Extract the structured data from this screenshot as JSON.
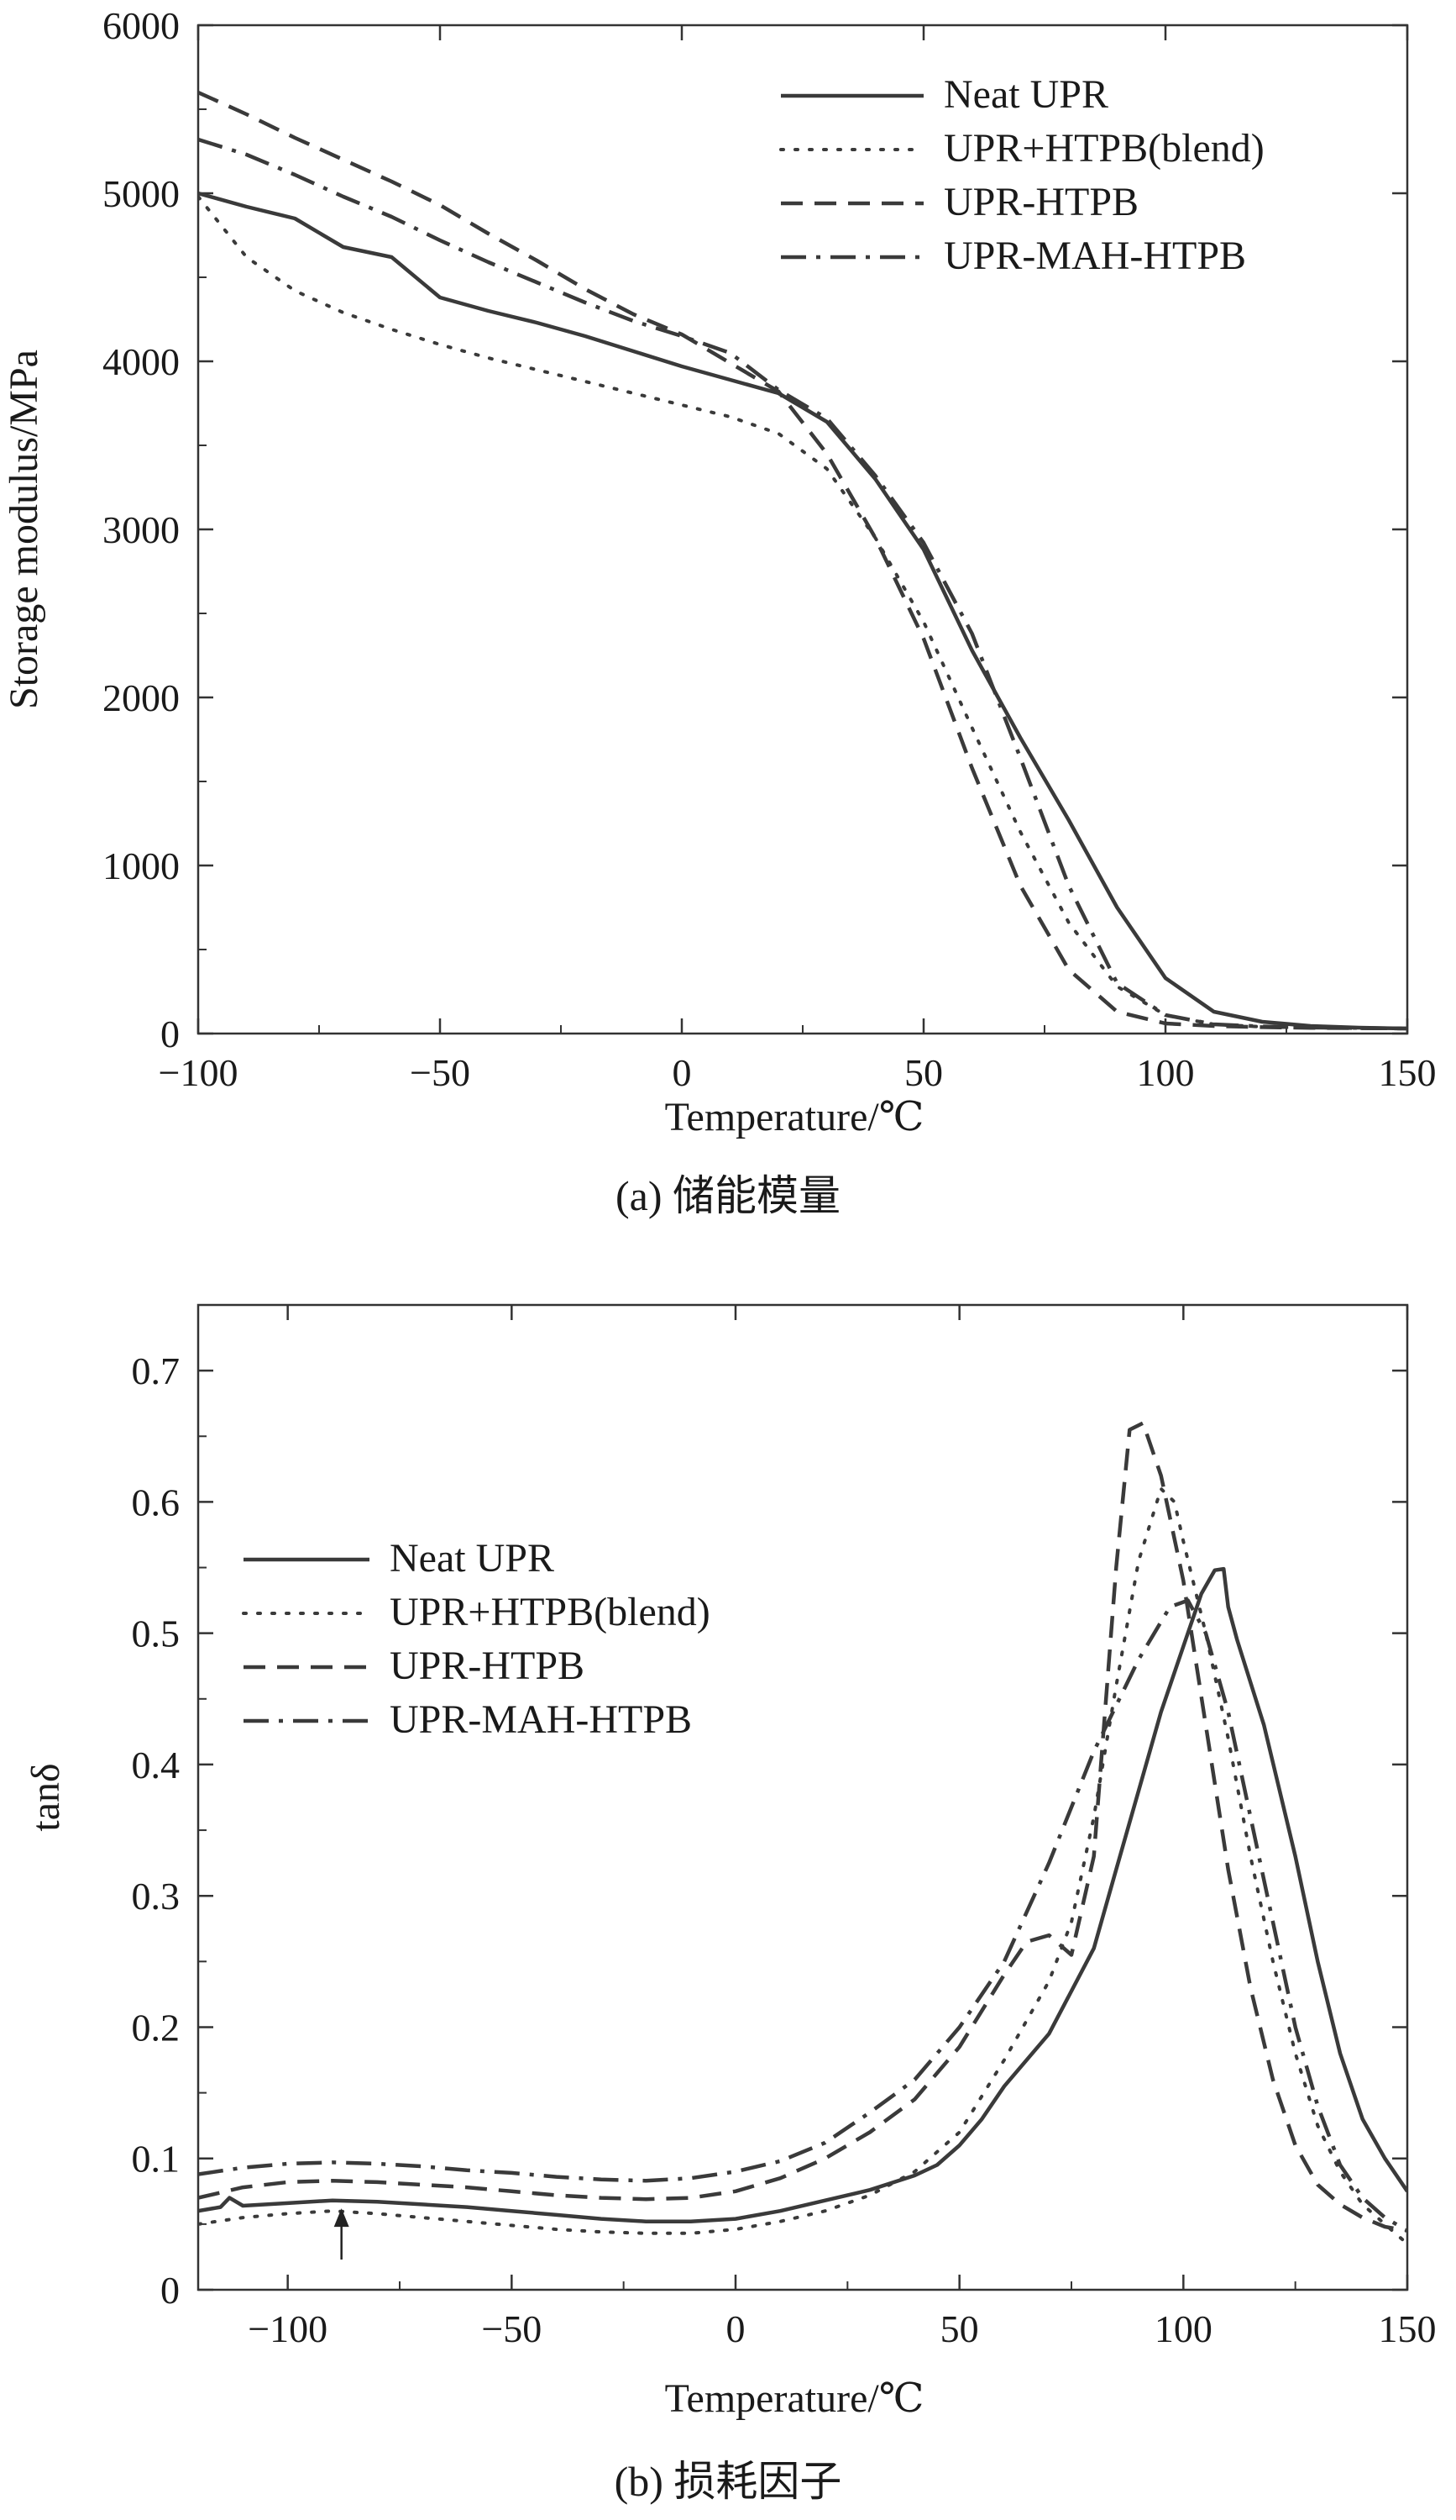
{
  "chart_data": [
    {
      "type": "line",
      "panel": "a",
      "caption": "(a) 储能模量",
      "xlabel": "Temperature/℃",
      "ylabel": "Storage modulus/MPa",
      "xlim": [
        -100,
        150
      ],
      "ylim": [
        0,
        6000
      ],
      "xticks": [
        -100,
        -50,
        0,
        50,
        100,
        150
      ],
      "yticks": [
        0,
        1000,
        2000,
        3000,
        4000,
        5000,
        6000
      ],
      "xtick_labels": [
        "−100",
        "−50",
        "0",
        "50",
        "100",
        "150"
      ],
      "ytick_labels": [
        "0",
        "1000",
        "2000",
        "3000",
        "4000",
        "5000",
        "6000"
      ],
      "legend_position": "top-right",
      "grid": false,
      "series": [
        {
          "name": "Neat UPR",
          "style": "solid",
          "points": [
            [
              -100,
              5000
            ],
            [
              -90,
              4920
            ],
            [
              -80,
              4850
            ],
            [
              -70,
              4680
            ],
            [
              -60,
              4620
            ],
            [
              -50,
              4380
            ],
            [
              -40,
              4300
            ],
            [
              -30,
              4230
            ],
            [
              -20,
              4150
            ],
            [
              -10,
              4060
            ],
            [
              0,
              3970
            ],
            [
              10,
              3890
            ],
            [
              20,
              3810
            ],
            [
              30,
              3640
            ],
            [
              40,
              3300
            ],
            [
              50,
              2880
            ],
            [
              60,
              2280
            ],
            [
              70,
              1760
            ],
            [
              80,
              1270
            ],
            [
              90,
              750
            ],
            [
              100,
              330
            ],
            [
              110,
              130
            ],
            [
              120,
              70
            ],
            [
              130,
              45
            ],
            [
              140,
              35
            ],
            [
              150,
              30
            ]
          ]
        },
        {
          "name": "UPR+HTPB(blend)",
          "style": "dotted",
          "points": [
            [
              -100,
              4980
            ],
            [
              -90,
              4620
            ],
            [
              -80,
              4420
            ],
            [
              -70,
              4290
            ],
            [
              -60,
              4190
            ],
            [
              -50,
              4100
            ],
            [
              -40,
              4020
            ],
            [
              -30,
              3950
            ],
            [
              -20,
              3880
            ],
            [
              -10,
              3810
            ],
            [
              0,
              3740
            ],
            [
              10,
              3670
            ],
            [
              20,
              3570
            ],
            [
              30,
              3360
            ],
            [
              40,
              2950
            ],
            [
              50,
              2450
            ],
            [
              60,
              1820
            ],
            [
              70,
              1200
            ],
            [
              80,
              660
            ],
            [
              90,
              280
            ],
            [
              100,
              110
            ],
            [
              110,
              55
            ],
            [
              120,
              40
            ],
            [
              130,
              35
            ],
            [
              150,
              30
            ]
          ]
        },
        {
          "name": "UPR-HTPB",
          "style": "dashed",
          "points": [
            [
              -100,
              5600
            ],
            [
              -90,
              5470
            ],
            [
              -80,
              5330
            ],
            [
              -70,
              5200
            ],
            [
              -60,
              5070
            ],
            [
              -50,
              4930
            ],
            [
              -40,
              4760
            ],
            [
              -30,
              4600
            ],
            [
              -20,
              4430
            ],
            [
              -10,
              4280
            ],
            [
              0,
              4160
            ],
            [
              10,
              3990
            ],
            [
              20,
              3820
            ],
            [
              30,
              3450
            ],
            [
              40,
              2950
            ],
            [
              50,
              2350
            ],
            [
              60,
              1580
            ],
            [
              70,
              880
            ],
            [
              80,
              380
            ],
            [
              90,
              130
            ],
            [
              100,
              60
            ],
            [
              110,
              45
            ],
            [
              120,
              38
            ],
            [
              130,
              34
            ],
            [
              150,
              30
            ]
          ]
        },
        {
          "name": "UPR-MAH-HTPB",
          "style": "dashdot",
          "points": [
            [
              -100,
              5320
            ],
            [
              -90,
              5230
            ],
            [
              -80,
              5110
            ],
            [
              -70,
              4980
            ],
            [
              -60,
              4860
            ],
            [
              -50,
              4720
            ],
            [
              -40,
              4590
            ],
            [
              -30,
              4470
            ],
            [
              -20,
              4350
            ],
            [
              -10,
              4240
            ],
            [
              0,
              4150
            ],
            [
              10,
              4050
            ],
            [
              20,
              3830
            ],
            [
              30,
              3660
            ],
            [
              40,
              3320
            ],
            [
              50,
              2920
            ],
            [
              60,
              2380
            ],
            [
              70,
              1640
            ],
            [
              80,
              880
            ],
            [
              90,
              300
            ],
            [
              100,
              110
            ],
            [
              110,
              55
            ],
            [
              120,
              42
            ],
            [
              130,
              36
            ],
            [
              150,
              30
            ]
          ]
        }
      ]
    },
    {
      "type": "line",
      "panel": "b",
      "caption": "(b) 损耗因子",
      "xlabel": "Temperature/℃",
      "ylabel": "tanδ",
      "xlim": [
        -120,
        150
      ],
      "ylim": [
        0,
        0.75
      ],
      "xticks": [
        -100,
        -50,
        0,
        50,
        100,
        150
      ],
      "yticks": [
        0,
        0.1,
        0.2,
        0.3,
        0.4,
        0.5,
        0.6,
        0.7
      ],
      "xtick_labels": [
        "−100",
        "−50",
        "0",
        "50",
        "100",
        "150"
      ],
      "ytick_labels": [
        "0",
        "0.1",
        "0.2",
        "0.3",
        "0.4",
        "0.5",
        "0.6",
        "0.7"
      ],
      "legend_position": "top-left",
      "grid": false,
      "annotation": {
        "type": "arrow",
        "x": -88,
        "y_from": 0.023,
        "y_to": 0.062
      },
      "series": [
        {
          "name": "Neat UPR",
          "style": "solid",
          "points": [
            [
              -120,
              0.06
            ],
            [
              -115,
              0.063
            ],
            [
              -113,
              0.07
            ],
            [
              -110,
              0.064
            ],
            [
              -100,
              0.066
            ],
            [
              -90,
              0.068
            ],
            [
              -80,
              0.067
            ],
            [
              -70,
              0.065
            ],
            [
              -60,
              0.063
            ],
            [
              -50,
              0.06
            ],
            [
              -40,
              0.057
            ],
            [
              -30,
              0.054
            ],
            [
              -20,
              0.052
            ],
            [
              -10,
              0.052
            ],
            [
              0,
              0.054
            ],
            [
              10,
              0.06
            ],
            [
              20,
              0.068
            ],
            [
              30,
              0.076
            ],
            [
              40,
              0.087
            ],
            [
              45,
              0.095
            ],
            [
              50,
              0.11
            ],
            [
              55,
              0.13
            ],
            [
              60,
              0.155
            ],
            [
              70,
              0.195
            ],
            [
              80,
              0.26
            ],
            [
              85,
              0.32
            ],
            [
              90,
              0.38
            ],
            [
              95,
              0.44
            ],
            [
              100,
              0.49
            ],
            [
              104,
              0.53
            ],
            [
              107,
              0.548
            ],
            [
              109,
              0.549
            ],
            [
              110,
              0.52
            ],
            [
              112,
              0.495
            ],
            [
              118,
              0.43
            ],
            [
              125,
              0.33
            ],
            [
              130,
              0.25
            ],
            [
              135,
              0.18
            ],
            [
              140,
              0.13
            ],
            [
              145,
              0.1
            ],
            [
              150,
              0.075
            ]
          ]
        },
        {
          "name": "UPR+HTPB(blend)",
          "style": "dotted",
          "points": [
            [
              -120,
              0.05
            ],
            [
              -110,
              0.055
            ],
            [
              -100,
              0.058
            ],
            [
              -90,
              0.06
            ],
            [
              -80,
              0.058
            ],
            [
              -70,
              0.055
            ],
            [
              -60,
              0.052
            ],
            [
              -50,
              0.049
            ],
            [
              -40,
              0.046
            ],
            [
              -30,
              0.044
            ],
            [
              -20,
              0.043
            ],
            [
              -10,
              0.043
            ],
            [
              0,
              0.046
            ],
            [
              10,
              0.052
            ],
            [
              20,
              0.06
            ],
            [
              30,
              0.072
            ],
            [
              40,
              0.09
            ],
            [
              50,
              0.12
            ],
            [
              60,
              0.175
            ],
            [
              70,
              0.235
            ],
            [
              75,
              0.28
            ],
            [
              80,
              0.36
            ],
            [
              85,
              0.46
            ],
            [
              90,
              0.555
            ],
            [
              95,
              0.61
            ],
            [
              98,
              0.6
            ],
            [
              100,
              0.57
            ],
            [
              105,
              0.5
            ],
            [
              110,
              0.42
            ],
            [
              115,
              0.33
            ],
            [
              120,
              0.25
            ],
            [
              125,
              0.18
            ],
            [
              130,
              0.125
            ],
            [
              135,
              0.09
            ],
            [
              140,
              0.065
            ],
            [
              145,
              0.05
            ],
            [
              150,
              0.035
            ]
          ]
        },
        {
          "name": "UPR-HTPB",
          "style": "dashed",
          "points": [
            [
              -120,
              0.07
            ],
            [
              -110,
              0.078
            ],
            [
              -100,
              0.082
            ],
            [
              -90,
              0.083
            ],
            [
              -80,
              0.082
            ],
            [
              -70,
              0.08
            ],
            [
              -60,
              0.078
            ],
            [
              -50,
              0.075
            ],
            [
              -40,
              0.072
            ],
            [
              -30,
              0.07
            ],
            [
              -20,
              0.069
            ],
            [
              -10,
              0.07
            ],
            [
              0,
              0.075
            ],
            [
              10,
              0.085
            ],
            [
              20,
              0.1
            ],
            [
              30,
              0.12
            ],
            [
              40,
              0.145
            ],
            [
              50,
              0.185
            ],
            [
              60,
              0.24
            ],
            [
              65,
              0.265
            ],
            [
              70,
              0.27
            ],
            [
              75,
              0.255
            ],
            [
              80,
              0.33
            ],
            [
              85,
              0.55
            ],
            [
              88,
              0.655
            ],
            [
              91,
              0.66
            ],
            [
              95,
              0.62
            ],
            [
              100,
              0.54
            ],
            [
              105,
              0.43
            ],
            [
              110,
              0.32
            ],
            [
              115,
              0.23
            ],
            [
              120,
              0.16
            ],
            [
              125,
              0.11
            ],
            [
              130,
              0.08
            ],
            [
              135,
              0.065
            ],
            [
              140,
              0.055
            ],
            [
              145,
              0.048
            ],
            [
              150,
              0.045
            ]
          ]
        },
        {
          "name": "UPR-MAH-HTPB",
          "style": "dashdot",
          "points": [
            [
              -120,
              0.088
            ],
            [
              -110,
              0.093
            ],
            [
              -100,
              0.096
            ],
            [
              -90,
              0.097
            ],
            [
              -80,
              0.096
            ],
            [
              -70,
              0.094
            ],
            [
              -60,
              0.091
            ],
            [
              -50,
              0.089
            ],
            [
              -40,
              0.086
            ],
            [
              -30,
              0.084
            ],
            [
              -20,
              0.083
            ],
            [
              -10,
              0.085
            ],
            [
              0,
              0.09
            ],
            [
              10,
              0.098
            ],
            [
              20,
              0.112
            ],
            [
              30,
              0.135
            ],
            [
              40,
              0.16
            ],
            [
              50,
              0.2
            ],
            [
              60,
              0.25
            ],
            [
              70,
              0.325
            ],
            [
              80,
              0.41
            ],
            [
              90,
              0.48
            ],
            [
              97,
              0.52
            ],
            [
              101,
              0.525
            ],
            [
              105,
              0.5
            ],
            [
              110,
              0.44
            ],
            [
              115,
              0.36
            ],
            [
              120,
              0.28
            ],
            [
              125,
              0.2
            ],
            [
              130,
              0.14
            ],
            [
              135,
              0.095
            ],
            [
              140,
              0.07
            ],
            [
              145,
              0.055
            ],
            [
              150,
              0.045
            ]
          ]
        }
      ]
    }
  ]
}
